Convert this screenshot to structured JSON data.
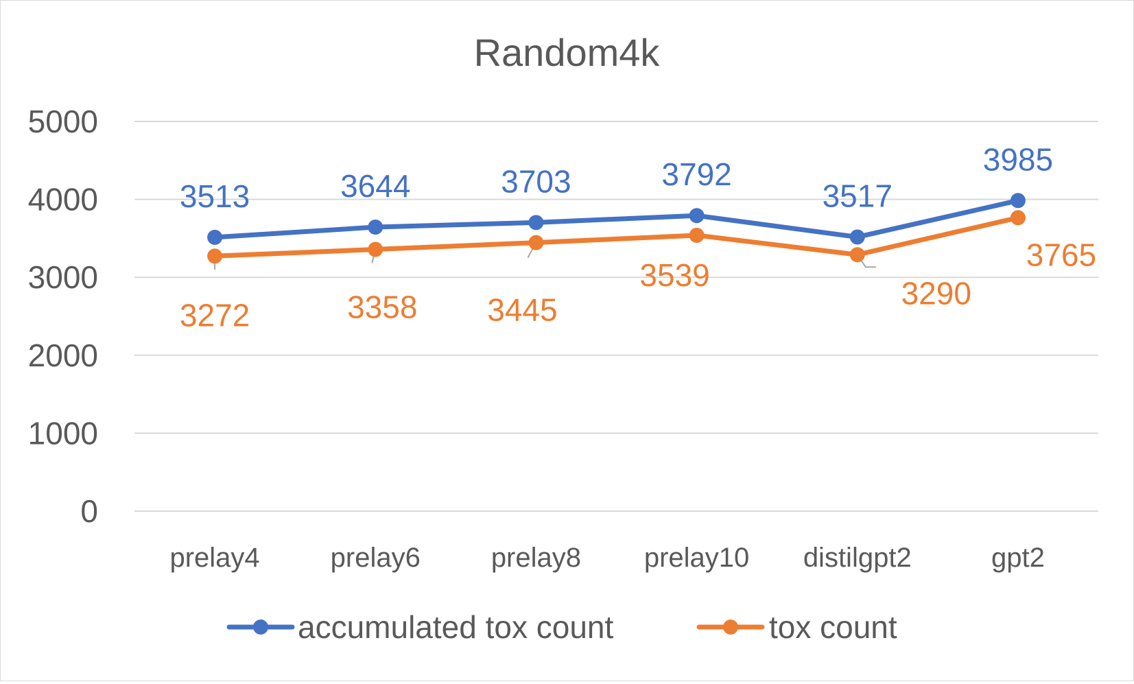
{
  "chart_data": {
    "type": "line",
    "title": "Random4k",
    "xlabel": "",
    "ylabel": "",
    "categories": [
      "prelay4",
      "prelay6",
      "prelay8",
      "prelay10",
      "distilgpt2",
      "gpt2"
    ],
    "ylim": [
      0,
      5000
    ],
    "yticks": [
      0,
      1000,
      2000,
      3000,
      4000,
      5000
    ],
    "grid": true,
    "legend_position": "bottom",
    "series": [
      {
        "name": "accumulated tox count",
        "color": "#4472C4",
        "values": [
          3513,
          3644,
          3703,
          3792,
          3517,
          3985
        ],
        "labels": [
          "3513",
          "3644",
          "3703",
          "3792",
          "3517",
          "3985"
        ]
      },
      {
        "name": "tox count",
        "color": "#ED7D31",
        "values": [
          3272,
          3358,
          3445,
          3539,
          3290,
          3765
        ],
        "labels": [
          "3272",
          "3358",
          "3445",
          "3539",
          "3290",
          "3765"
        ]
      }
    ]
  }
}
